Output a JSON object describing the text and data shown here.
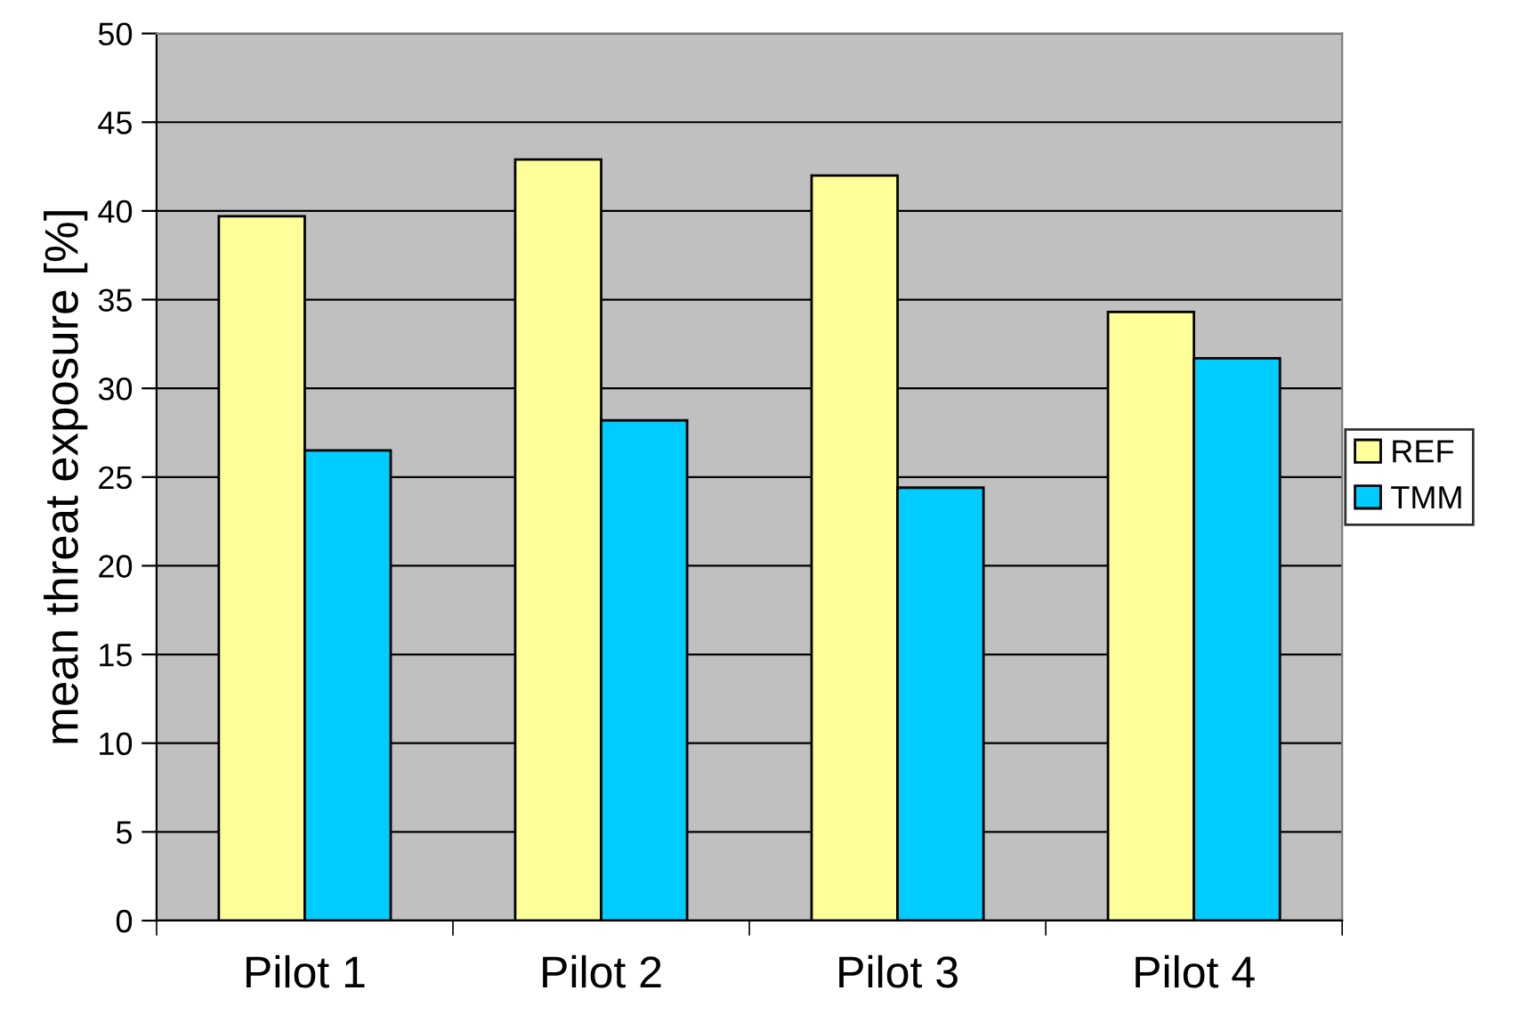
{
  "chart_data": {
    "type": "bar",
    "categories": [
      "Pilot 1",
      "Pilot 2",
      "Pilot 3",
      "Pilot 4"
    ],
    "series": [
      {
        "name": "REF",
        "color": "#ffff99",
        "values": [
          39.7,
          42.9,
          42.0,
          34.3
        ]
      },
      {
        "name": "TMM",
        "color": "#00ccff",
        "values": [
          26.5,
          28.2,
          24.4,
          31.7
        ]
      }
    ],
    "ylabel": "mean threat exposure [%]",
    "ylim": [
      0,
      50
    ],
    "yticks": [
      0,
      5,
      10,
      15,
      20,
      25,
      30,
      35,
      40,
      45,
      50
    ],
    "grid": "y",
    "legend": "right"
  }
}
